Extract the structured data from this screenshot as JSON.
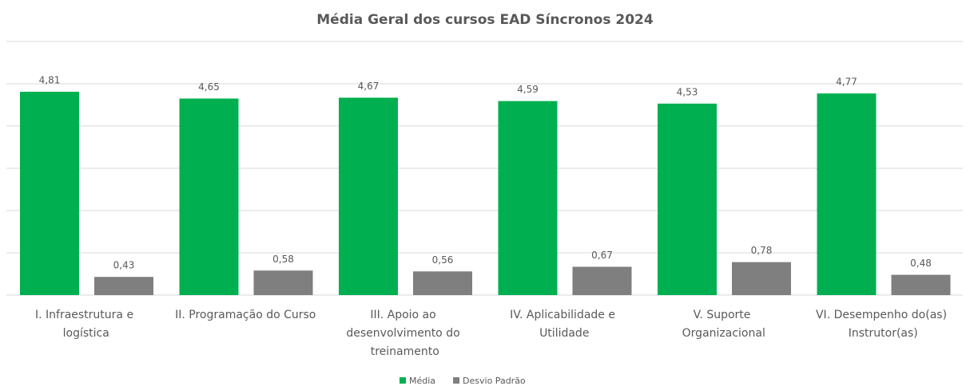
{
  "chart_data": {
    "type": "bar",
    "title": "Média Geral dos cursos EAD Síncronos 2024",
    "categories": [
      "I. Infraestrutura e logística",
      "II. Programação do Curso",
      "III. Apoio ao desenvolvimento do treinamento",
      "IV. Aplicabilidade e Utilidade",
      "V. Suporte Organizacional",
      "VI. Desempenho do(as) Instrutor(as)"
    ],
    "series": [
      {
        "name": "Média",
        "color": "#00b050",
        "values": [
          4.81,
          4.65,
          4.67,
          4.59,
          4.53,
          4.77
        ],
        "value_labels": [
          "4,81",
          "4,65",
          "4,67",
          "4,59",
          "4,53",
          "4,77"
        ]
      },
      {
        "name": "Desvio Padrão",
        "color": "#7f7f7f",
        "values": [
          0.43,
          0.58,
          0.56,
          0.67,
          0.78,
          0.48
        ],
        "value_labels": [
          "0,43",
          "0,58",
          "0,56",
          "0,67",
          "0,78",
          "0,48"
        ]
      }
    ],
    "ylim": [
      0,
      6
    ],
    "yticks": [
      0,
      1,
      2,
      3,
      4,
      5,
      6
    ],
    "grid": true,
    "legend": "bottom"
  }
}
